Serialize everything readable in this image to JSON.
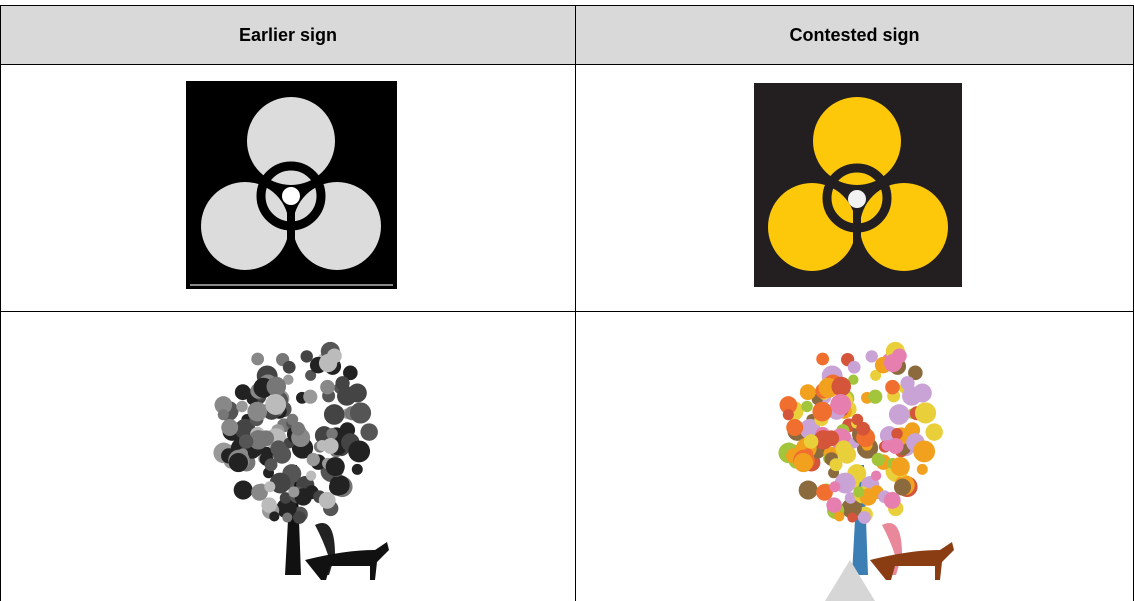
{
  "table": {
    "header": [
      "Earlier sign",
      "Contested sign"
    ]
  }
}
